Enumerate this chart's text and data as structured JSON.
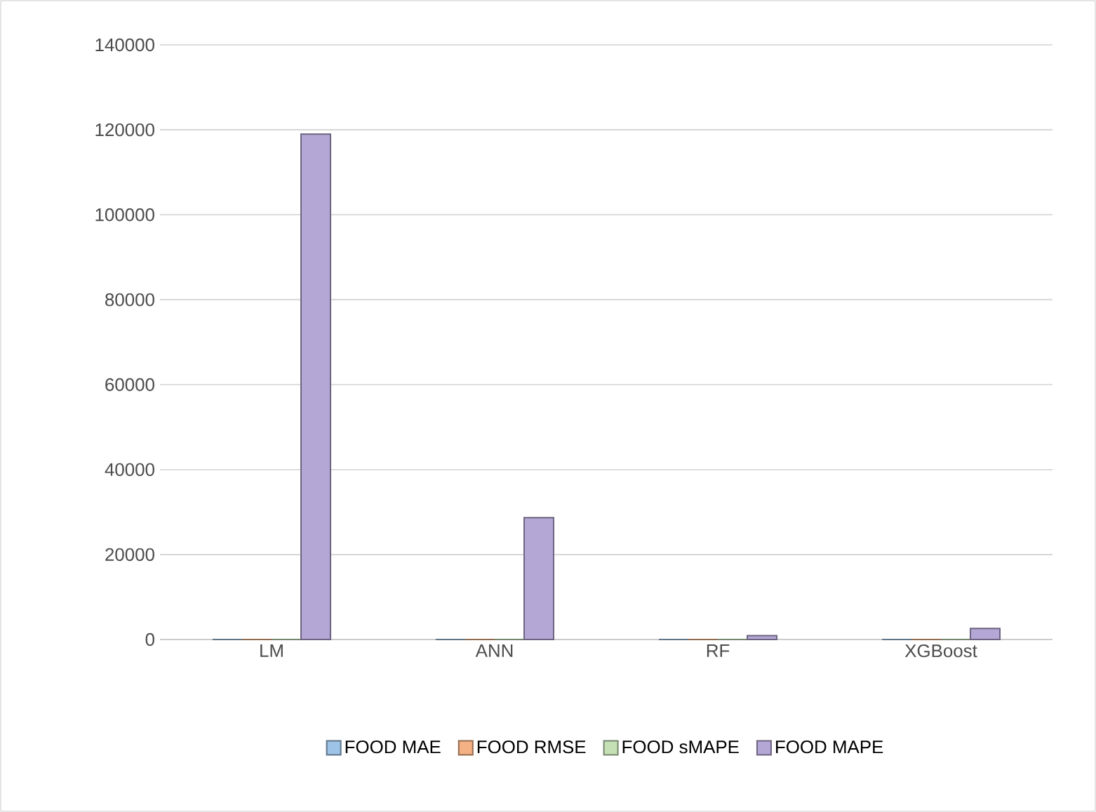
{
  "chart_data": {
    "type": "bar",
    "categories": [
      "LM",
      "ANN",
      "RF",
      "XGBoost"
    ],
    "series": [
      {
        "name": "FOOD MAE",
        "color": "#9dc3e6",
        "values": [
          0,
          0,
          0,
          0
        ]
      },
      {
        "name": "FOOD RMSE",
        "color": "#f4b183",
        "values": [
          0,
          0,
          0,
          0
        ]
      },
      {
        "name": "FOOD sMAPE",
        "color": "#c5e0b4",
        "values": [
          0,
          0,
          0,
          0
        ]
      },
      {
        "name": "FOOD MAPE",
        "color": "#b4a7d6",
        "values": [
          119000,
          28700,
          900,
          2600
        ]
      }
    ],
    "ylim": [
      0,
      140000
    ],
    "yticks": [
      0,
      20000,
      40000,
      60000,
      80000,
      100000,
      120000,
      140000
    ],
    "grid": "y",
    "legend": "bottom"
  }
}
